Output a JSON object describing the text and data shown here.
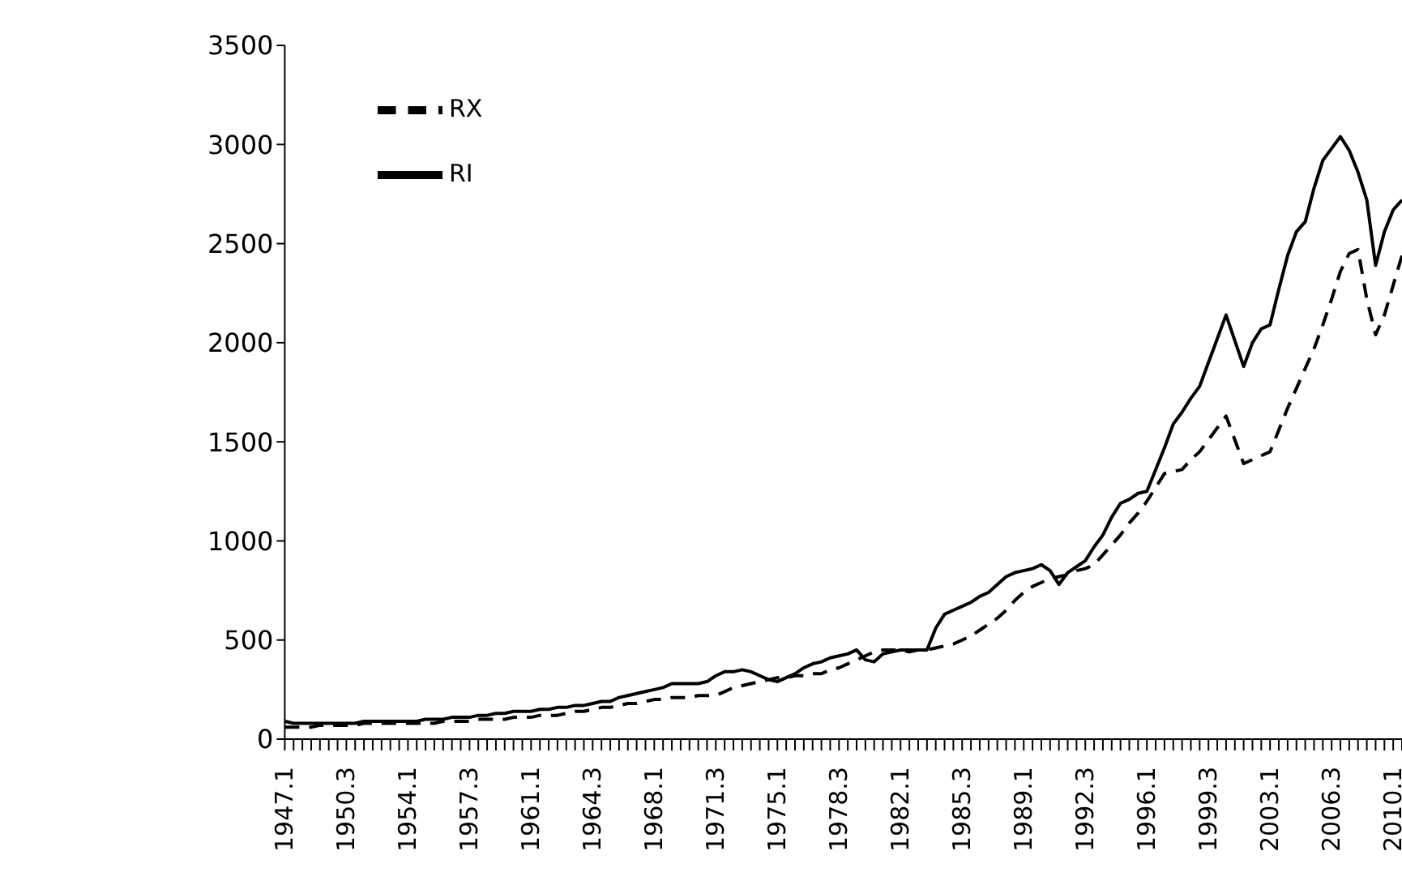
{
  "chart_data": {
    "type": "line",
    "categories": [
      "1947.1",
      null,
      null,
      null,
      null,
      null,
      null,
      "1950.3",
      null,
      null,
      null,
      null,
      null,
      null,
      "1954.1",
      null,
      null,
      null,
      null,
      null,
      null,
      "1957.3",
      null,
      null,
      null,
      null,
      null,
      null,
      "1961.1",
      null,
      null,
      null,
      null,
      null,
      null,
      "1964.3",
      null,
      null,
      null,
      null,
      null,
      null,
      "1968.1",
      null,
      null,
      null,
      null,
      null,
      null,
      "1971.3",
      null,
      null,
      null,
      null,
      null,
      null,
      "1975.1",
      null,
      null,
      null,
      null,
      null,
      null,
      "1978.3",
      null,
      null,
      null,
      null,
      null,
      null,
      "1982.1",
      null,
      null,
      null,
      null,
      null,
      null,
      "1985.3",
      null,
      null,
      null,
      null,
      null,
      null,
      "1989.1",
      null,
      null,
      null,
      null,
      null,
      null,
      "1992.3",
      null,
      null,
      null,
      null,
      null,
      null,
      "1996.1",
      null,
      null,
      null,
      null,
      null,
      null,
      "1999.3",
      null,
      null,
      null,
      null,
      null,
      null,
      "2003.1",
      null,
      null,
      null,
      null,
      null,
      null,
      "2006.3",
      null,
      null,
      null,
      null,
      null,
      null,
      "2010.1",
      null
    ],
    "ylim": [
      0,
      3500
    ],
    "yticks": [
      0,
      500,
      1000,
      1500,
      2000,
      2500,
      3000,
      3500
    ],
    "grid": false,
    "legend": "top left",
    "marker": "none",
    "series": [
      {
        "name": "RX",
        "color": "#000000",
        "line_style": "dashed",
        "values": [
          60,
          60,
          60,
          60,
          70,
          70,
          70,
          70,
          70,
          80,
          80,
          80,
          80,
          80,
          80,
          80,
          80,
          80,
          90,
          90,
          90,
          90,
          100,
          100,
          100,
          100,
          110,
          110,
          110,
          120,
          120,
          120,
          130,
          140,
          140,
          150,
          160,
          160,
          170,
          180,
          180,
          190,
          200,
          200,
          210,
          210,
          210,
          220,
          220,
          220,
          240,
          260,
          270,
          280,
          290,
          300,
          310,
          310,
          320,
          320,
          330,
          330,
          350,
          360,
          380,
          400,
          420,
          440,
          450,
          450,
          450,
          440,
          450,
          450,
          460,
          470,
          480,
          500,
          520,
          550,
          580,
          610,
          650,
          700,
          740,
          770,
          790,
          810,
          820,
          830,
          850,
          860,
          880,
          930,
          980,
          1030,
          1090,
          1140,
          1200,
          1270,
          1340,
          1350,
          1360,
          1410,
          1450,
          1510,
          1570,
          1630,
          1510,
          1390,
          1410,
          1430,
          1450,
          1560,
          1670,
          1770,
          1870,
          1970,
          2090,
          2220,
          2360,
          2450,
          2470,
          2220,
          2040,
          2140,
          2290,
          2440
        ]
      },
      {
        "name": "RI",
        "color": "#000000",
        "line_style": "solid",
        "values": [
          90,
          80,
          80,
          80,
          80,
          80,
          80,
          80,
          80,
          90,
          90,
          90,
          90,
          90,
          90,
          90,
          100,
          100,
          100,
          110,
          110,
          110,
          120,
          120,
          130,
          130,
          140,
          140,
          140,
          150,
          150,
          160,
          160,
          170,
          170,
          180,
          190,
          190,
          210,
          220,
          230,
          240,
          250,
          260,
          280,
          280,
          280,
          280,
          290,
          320,
          340,
          340,
          350,
          340,
          320,
          300,
          290,
          310,
          330,
          360,
          380,
          390,
          410,
          420,
          430,
          450,
          400,
          390,
          430,
          440,
          450,
          450,
          450,
          450,
          560,
          630,
          650,
          670,
          690,
          720,
          740,
          780,
          820,
          840,
          850,
          860,
          880,
          850,
          780,
          840,
          870,
          900,
          970,
          1030,
          1120,
          1190,
          1210,
          1240,
          1250,
          1360,
          1470,
          1590,
          1650,
          1720,
          1780,
          1900,
          2020,
          2140,
          2010,
          1880,
          2000,
          2070,
          2090,
          2270,
          2440,
          2560,
          2610,
          2780,
          2920,
          2980,
          3040,
          2970,
          2860,
          2720,
          2390,
          2560,
          2670,
          2720
        ]
      }
    ]
  }
}
